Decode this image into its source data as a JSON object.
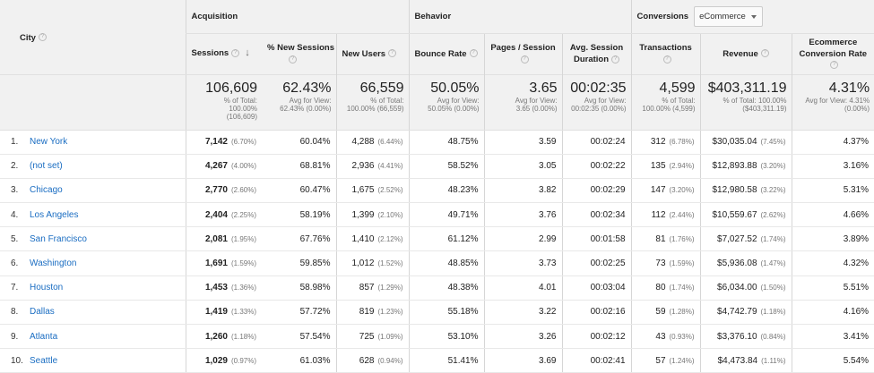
{
  "header": {
    "city": "City",
    "acquisition": "Acquisition",
    "behavior": "Behavior",
    "conversions": "Conversions",
    "conversions_select": "eCommerce"
  },
  "columns": {
    "sessions": "Sessions",
    "new_sessions": "% New Sessions",
    "new_users": "New Users",
    "bounce_rate": "Bounce Rate",
    "pages_session": "Pages / Session",
    "avg_session_1": "Avg. Session",
    "avg_session_2": "Duration",
    "transactions": "Transactions",
    "revenue": "Revenue",
    "ecr_1": "Ecommerce",
    "ecr_2": "Conversion Rate"
  },
  "totals": {
    "sessions": {
      "value": "106,609",
      "sub1": "% of Total:",
      "sub2": "100.00%",
      "sub3": "(106,609)"
    },
    "new_sessions": {
      "value": "62.43%",
      "sub1": "Avg for View:",
      "sub2": "62.43% (0.00%)"
    },
    "new_users": {
      "value": "66,559",
      "sub1": "% of Total:",
      "sub2": "100.00% (66,559)"
    },
    "bounce_rate": {
      "value": "50.05%",
      "sub1": "Avg for View:",
      "sub2": "50.05% (0.00%)"
    },
    "pages_session": {
      "value": "3.65",
      "sub1": "Avg for View:",
      "sub2": "3.65 (0.00%)"
    },
    "avg_duration": {
      "value": "00:02:35",
      "sub1": "Avg for View:",
      "sub2": "00:02:35 (0.00%)"
    },
    "transactions": {
      "value": "4,599",
      "sub1": "% of Total:",
      "sub2": "100.00% (4,599)"
    },
    "revenue": {
      "value": "$403,311.19",
      "sub1": "% of Total: 100.00%",
      "sub2": "($403,311.19)"
    },
    "ecr": {
      "value": "4.31%",
      "sub1": "Avg for View: 4.31%",
      "sub2": "(0.00%)"
    }
  },
  "rows": [
    {
      "idx": "1.",
      "city": "New York",
      "sessions": "7,142",
      "sessions_pct": "(6.70%)",
      "new_sessions": "60.04%",
      "new_users": "4,288",
      "new_users_pct": "(6.44%)",
      "bounce": "48.75%",
      "pages": "3.59",
      "duration": "00:02:24",
      "trans": "312",
      "trans_pct": "(6.78%)",
      "revenue": "$30,035.04",
      "revenue_pct": "(7.45%)",
      "ecr": "4.37%"
    },
    {
      "idx": "2.",
      "city": "(not set)",
      "sessions": "4,267",
      "sessions_pct": "(4.00%)",
      "new_sessions": "68.81%",
      "new_users": "2,936",
      "new_users_pct": "(4.41%)",
      "bounce": "58.52%",
      "pages": "3.05",
      "duration": "00:02:22",
      "trans": "135",
      "trans_pct": "(2.94%)",
      "revenue": "$12,893.88",
      "revenue_pct": "(3.20%)",
      "ecr": "3.16%"
    },
    {
      "idx": "3.",
      "city": "Chicago",
      "sessions": "2,770",
      "sessions_pct": "(2.60%)",
      "new_sessions": "60.47%",
      "new_users": "1,675",
      "new_users_pct": "(2.52%)",
      "bounce": "48.23%",
      "pages": "3.82",
      "duration": "00:02:29",
      "trans": "147",
      "trans_pct": "(3.20%)",
      "revenue": "$12,980.58",
      "revenue_pct": "(3.22%)",
      "ecr": "5.31%"
    },
    {
      "idx": "4.",
      "city": "Los Angeles",
      "sessions": "2,404",
      "sessions_pct": "(2.25%)",
      "new_sessions": "58.19%",
      "new_users": "1,399",
      "new_users_pct": "(2.10%)",
      "bounce": "49.71%",
      "pages": "3.76",
      "duration": "00:02:34",
      "trans": "112",
      "trans_pct": "(2.44%)",
      "revenue": "$10,559.67",
      "revenue_pct": "(2.62%)",
      "ecr": "4.66%"
    },
    {
      "idx": "5.",
      "city": "San Francisco",
      "sessions": "2,081",
      "sessions_pct": "(1.95%)",
      "new_sessions": "67.76%",
      "new_users": "1,410",
      "new_users_pct": "(2.12%)",
      "bounce": "61.12%",
      "pages": "2.99",
      "duration": "00:01:58",
      "trans": "81",
      "trans_pct": "(1.76%)",
      "revenue": "$7,027.52",
      "revenue_pct": "(1.74%)",
      "ecr": "3.89%"
    },
    {
      "idx": "6.",
      "city": "Washington",
      "sessions": "1,691",
      "sessions_pct": "(1.59%)",
      "new_sessions": "59.85%",
      "new_users": "1,012",
      "new_users_pct": "(1.52%)",
      "bounce": "48.85%",
      "pages": "3.73",
      "duration": "00:02:25",
      "trans": "73",
      "trans_pct": "(1.59%)",
      "revenue": "$5,936.08",
      "revenue_pct": "(1.47%)",
      "ecr": "4.32%"
    },
    {
      "idx": "7.",
      "city": "Houston",
      "sessions": "1,453",
      "sessions_pct": "(1.36%)",
      "new_sessions": "58.98%",
      "new_users": "857",
      "new_users_pct": "(1.29%)",
      "bounce": "48.38%",
      "pages": "4.01",
      "duration": "00:03:04",
      "trans": "80",
      "trans_pct": "(1.74%)",
      "revenue": "$6,034.00",
      "revenue_pct": "(1.50%)",
      "ecr": "5.51%"
    },
    {
      "idx": "8.",
      "city": "Dallas",
      "sessions": "1,419",
      "sessions_pct": "(1.33%)",
      "new_sessions": "57.72%",
      "new_users": "819",
      "new_users_pct": "(1.23%)",
      "bounce": "55.18%",
      "pages": "3.22",
      "duration": "00:02:16",
      "trans": "59",
      "trans_pct": "(1.28%)",
      "revenue": "$4,742.79",
      "revenue_pct": "(1.18%)",
      "ecr": "4.16%"
    },
    {
      "idx": "9.",
      "city": "Atlanta",
      "sessions": "1,260",
      "sessions_pct": "(1.18%)",
      "new_sessions": "57.54%",
      "new_users": "725",
      "new_users_pct": "(1.09%)",
      "bounce": "53.10%",
      "pages": "3.26",
      "duration": "00:02:12",
      "trans": "43",
      "trans_pct": "(0.93%)",
      "revenue": "$3,376.10",
      "revenue_pct": "(0.84%)",
      "ecr": "3.41%"
    },
    {
      "idx": "10.",
      "city": "Seattle",
      "sessions": "1,029",
      "sessions_pct": "(0.97%)",
      "new_sessions": "61.03%",
      "new_users": "628",
      "new_users_pct": "(0.94%)",
      "bounce": "51.41%",
      "pages": "3.69",
      "duration": "00:02:41",
      "trans": "57",
      "trans_pct": "(1.24%)",
      "revenue": "$4,473.84",
      "revenue_pct": "(1.11%)",
      "ecr": "5.54%"
    }
  ]
}
